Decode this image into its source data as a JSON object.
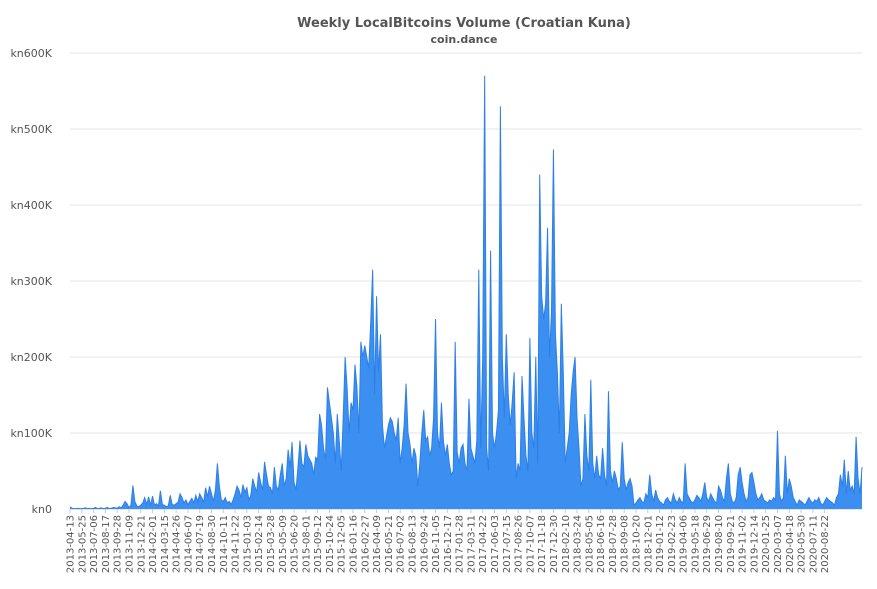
{
  "chart_data": {
    "type": "area",
    "title": "Weekly LocalBitcoins Volume (Croatian Kuna)",
    "subtitle": "coin.dance",
    "xlabel": "",
    "ylabel": "",
    "ylim": [
      0,
      600000
    ],
    "yticks": [
      {
        "value": 0,
        "label": "kn0"
      },
      {
        "value": 100000,
        "label": "kn100K"
      },
      {
        "value": 200000,
        "label": "kn200K"
      },
      {
        "value": 300000,
        "label": "kn300K"
      },
      {
        "value": 400000,
        "label": "kn400K"
      },
      {
        "value": 500000,
        "label": "kn500K"
      },
      {
        "value": 600000,
        "label": "kn600K"
      }
    ],
    "grid": true,
    "legend": "none",
    "color": "#3a8ff0",
    "x_tick_labels": [
      "2013-04-13",
      "2013-05-25",
      "2013-07-06",
      "2013-08-17",
      "2013-09-28",
      "2013-11-09",
      "2013-12-21",
      "2014-02-01",
      "2014-03-15",
      "2014-04-26",
      "2014-06-07",
      "2014-07-19",
      "2014-08-30",
      "2014-10-11",
      "2014-11-22",
      "2015-01-03",
      "2015-02-14",
      "2015-03-28",
      "2015-05-09",
      "2015-06-20",
      "2015-08-01",
      "2015-09-12",
      "2015-10-24",
      "2015-12-05",
      "2016-01-16",
      "2016-02-27",
      "2016-04-09",
      "2016-05-21",
      "2016-07-02",
      "2016-08-13",
      "2016-09-24",
      "2016-11-05",
      "2016-12-17",
      "2017-01-28",
      "2017-03-11",
      "2017-04-22",
      "2017-06-03",
      "2017-07-15",
      "2017-08-26",
      "2017-10-07",
      "2017-11-18",
      "2017-12-30",
      "2018-02-10",
      "2018-03-24",
      "2018-05-05",
      "2018-06-16",
      "2018-07-28",
      "2018-09-08",
      "2018-10-20",
      "2018-12-01",
      "2019-01-12",
      "2019-02-23",
      "2019-04-06",
      "2019-05-18",
      "2019-06-29",
      "2019-08-10",
      "2019-09-21",
      "2019-11-02",
      "2019-12-14",
      "2020-01-25",
      "2020-03-07",
      "2020-04-18",
      "2020-05-30",
      "2020-07-11",
      "2020-08-22"
    ],
    "series": [
      {
        "x_start": "2013-04-13",
        "x_step_days": 7,
        "values": [
          3000,
          1000,
          500,
          500,
          1000,
          500,
          500,
          1000,
          1500,
          500,
          1000,
          500,
          1000,
          2000,
          500,
          1000,
          1500,
          500,
          1000,
          2000,
          500,
          1000,
          2000,
          1500,
          1000,
          3000,
          1500,
          5000,
          10000,
          7000,
          2000,
          5000,
          31000,
          10000,
          4000,
          3000,
          5000,
          8000,
          15000,
          6000,
          16000,
          5000,
          17000,
          5000,
          7000,
          4000,
          24000,
          6000,
          5000,
          3000,
          4000,
          18000,
          6000,
          5000,
          7000,
          9000,
          20000,
          15000,
          8000,
          12000,
          6000,
          10000,
          14000,
          8000,
          18000,
          10000,
          20000,
          15000,
          9000,
          28000,
          16000,
          30000,
          20000,
          10000,
          25000,
          60000,
          30000,
          12000,
          10000,
          15000,
          8000,
          10000,
          6000,
          12000,
          20000,
          30000,
          25000,
          15000,
          32000,
          22000,
          28000,
          12000,
          18000,
          40000,
          30000,
          22000,
          48000,
          35000,
          25000,
          62000,
          45000,
          30000,
          28000,
          20000,
          55000,
          30000,
          25000,
          45000,
          60000,
          30000,
          40000,
          78000,
          55000,
          88000,
          35000,
          25000,
          55000,
          90000,
          60000,
          55000,
          85000,
          70000,
          65000,
          60000,
          45000,
          68000,
          65000,
          125000,
          110000,
          80000,
          65000,
          160000,
          140000,
          120000,
          100000,
          60000,
          125000,
          90000,
          50000,
          120000,
          200000,
          160000,
          100000,
          140000,
          130000,
          190000,
          160000,
          100000,
          220000,
          200000,
          215000,
          200000,
          185000,
          245000,
          315000,
          150000,
          280000,
          180000,
          230000,
          110000,
          80000,
          95000,
          110000,
          120000,
          115000,
          100000,
          90000,
          120000,
          60000,
          80000,
          110000,
          165000,
          100000,
          85000,
          60000,
          80000,
          70000,
          30000,
          60000,
          100000,
          130000,
          90000,
          95000,
          70000,
          80000,
          120000,
          250000,
          100000,
          80000,
          140000,
          90000,
          70000,
          85000,
          60000,
          45000,
          50000,
          220000,
          75000,
          60000,
          80000,
          85000,
          60000,
          50000,
          145000,
          80000,
          70000,
          60000,
          90000,
          315000,
          80000,
          200000,
          570000,
          80000,
          50000,
          340000,
          100000,
          80000,
          100000,
          130000,
          530000,
          200000,
          120000,
          230000,
          150000,
          110000,
          140000,
          180000,
          40000,
          60000,
          50000,
          175000,
          120000,
          70000,
          50000,
          225000,
          100000,
          80000,
          200000,
          60000,
          440000,
          280000,
          250000,
          270000,
          370000,
          200000,
          260000,
          473000,
          230000,
          180000,
          100000,
          270000,
          180000,
          60000,
          80000,
          100000,
          150000,
          180000,
          200000,
          120000,
          80000,
          30000,
          40000,
          125000,
          70000,
          50000,
          170000,
          60000,
          40000,
          70000,
          45000,
          40000,
          80000,
          45000,
          30000,
          155000,
          50000,
          35000,
          50000,
          40000,
          25000,
          30000,
          88000,
          40000,
          25000,
          35000,
          40000,
          30000,
          5000,
          8000,
          12000,
          15000,
          10000,
          8000,
          20000,
          15000,
          45000,
          20000,
          10000,
          25000,
          15000,
          10000,
          8000,
          5000,
          12000,
          15000,
          10000,
          8000,
          20000,
          12000,
          8000,
          15000,
          10000,
          8000,
          60000,
          20000,
          15000,
          10000,
          8000,
          12000,
          18000,
          15000,
          10000,
          20000,
          35000,
          15000,
          10000,
          20000,
          15000,
          10000,
          8000,
          30000,
          25000,
          15000,
          10000,
          40000,
          60000,
          20000,
          10000,
          8000,
          15000,
          45000,
          55000,
          35000,
          20000,
          10000,
          15000,
          45000,
          48000,
          35000,
          20000,
          12000,
          15000,
          20000,
          12000,
          10000,
          8000,
          12000,
          10000,
          15000,
          12000,
          103000,
          20000,
          10000,
          15000,
          70000,
          20000,
          40000,
          30000,
          15000,
          10000,
          5000,
          12000,
          10000,
          8000,
          5000,
          10000,
          15000,
          10000,
          8000,
          12000,
          10000,
          15000,
          8000,
          5000,
          10000,
          15000,
          12000,
          10000,
          8000,
          5000,
          15000,
          20000,
          45000,
          30000,
          65000,
          20000,
          50000,
          25000,
          30000,
          20000,
          95000,
          40000,
          20000,
          55000
        ]
      }
    ]
  }
}
